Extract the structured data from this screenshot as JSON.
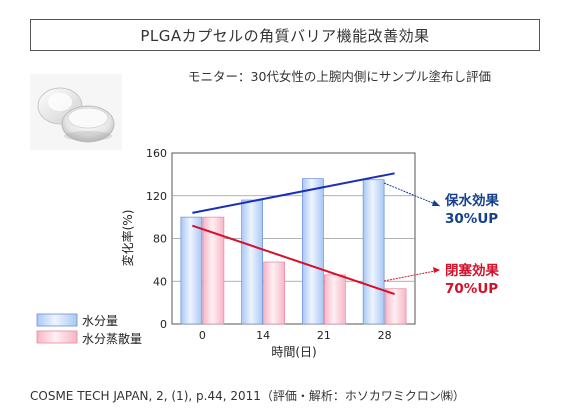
{
  "header": {
    "title": "PLGAカプセルの角質バリア機能改善効果",
    "subtitle": "モニター：30代女性の上腕内側にサンプル塗布し評価"
  },
  "footer": {
    "citation": "COSME TECH JAPAN, 2, (1), p.44, 2011（評価・解析：ホソカワミクロン㈱）"
  },
  "colors": {
    "series_moisture": "#a9c8f5",
    "series_evaporation": "#f7b5c6",
    "trend_moisture": "#1a2fb8",
    "trend_evaporation": "#d4102a",
    "anno_moisture": "#14408e",
    "anno_evaporation": "#d4102a"
  },
  "icons": {
    "product": "capsule-jar-image"
  },
  "chart_data": {
    "type": "bar",
    "title": "",
    "xlabel": "時間(日)",
    "ylabel": "変化率(%)",
    "categories": [
      "0",
      "14",
      "21",
      "28"
    ],
    "ylim": [
      0,
      160
    ],
    "yticks": [
      "0",
      "40",
      "80",
      "120",
      "160"
    ],
    "grid": true,
    "legend_position": "bottom-left",
    "series": [
      {
        "name": "水分量",
        "values": [
          100,
          116,
          136,
          135
        ]
      },
      {
        "name": "水分蒸散量",
        "values": [
          100,
          58,
          46,
          33
        ]
      }
    ],
    "trendlines": [
      {
        "series": "水分量",
        "from": [
          0,
          104
        ],
        "to": [
          3,
          141
        ]
      },
      {
        "series": "水分蒸散量",
        "from": [
          0,
          92
        ],
        "to": [
          3,
          28
        ]
      }
    ],
    "annotations": [
      {
        "series": "水分量",
        "line1": "保水効果",
        "line2": "30%UP"
      },
      {
        "series": "水分蒸散量",
        "line1": "閉塞効果",
        "line2": "70%UP"
      }
    ]
  }
}
